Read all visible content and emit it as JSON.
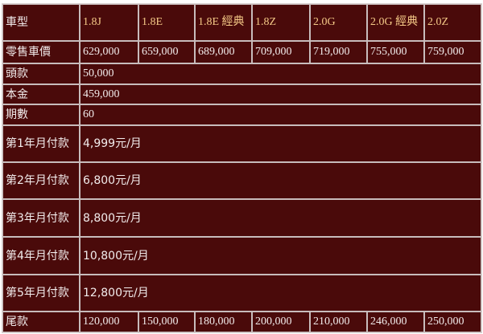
{
  "table": {
    "header_label": "車型",
    "models": [
      "1.8J",
      "1.8E",
      "1.8E 經典",
      "1.8Z",
      "2.0G",
      "2.0G 經典",
      "2.0Z"
    ],
    "retail_label": "零售車價",
    "retail_prices": [
      "629,000",
      "659,000",
      "689,000",
      "709,000",
      "719,000",
      "755,000",
      "759,000"
    ],
    "shared_rows": [
      {
        "label": "頭款",
        "value": "50,000"
      },
      {
        "label": "本金",
        "value": "459,000"
      },
      {
        "label": "期數",
        "value": "60"
      },
      {
        "label": "第1年月付款",
        "value": "4,999元/月"
      },
      {
        "label": "第2年月付款",
        "value": "6,800元/月"
      },
      {
        "label": "第3年月付款",
        "value": "8,800元/月"
      },
      {
        "label": "第4年月付款",
        "value": "10,800元/月"
      },
      {
        "label": "第5年月付款",
        "value": "12,800元/月"
      }
    ],
    "balloon_label": "尾款",
    "balloon_payments": [
      "120,000",
      "150,000",
      "180,000",
      "200,000",
      "210,000",
      "246,000",
      "250,000"
    ]
  },
  "colors": {
    "background": "#4a0a0a",
    "text": "#f2ecec",
    "model_text": "#f5c987",
    "border": "#c8bcbc"
  }
}
